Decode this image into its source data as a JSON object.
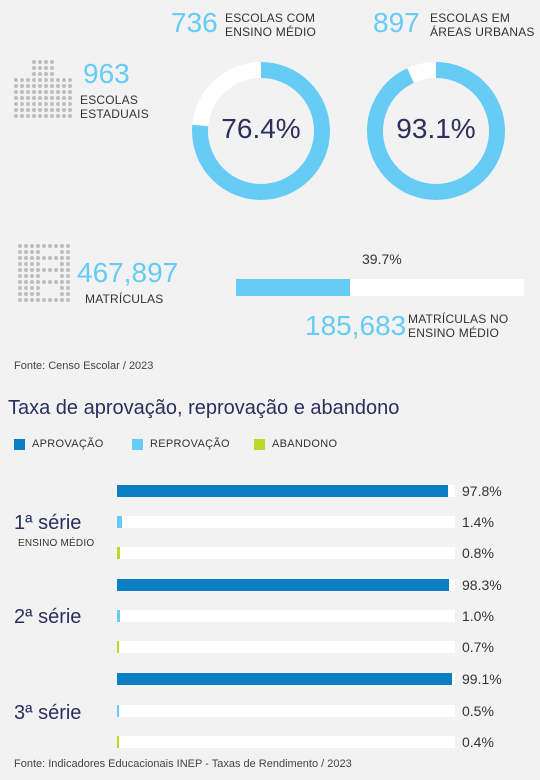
{
  "stats": {
    "escolas_estaduais": {
      "value": "963",
      "label_line1": "ESCOLAS",
      "label_line2": "ESTADUAIS",
      "icon": "school-building-icon"
    },
    "ensino_medio": {
      "value": "736",
      "label_line1": "ESCOLAS COM",
      "label_line2": "ENSINO MÉDIO",
      "percent_label": "76.4%",
      "percent": 76.4
    },
    "areas_urbanas": {
      "value": "897",
      "label_line1": "ESCOLAS EM",
      "label_line2": "ÁREAS URBANAS",
      "percent_label": "93.1%",
      "percent": 93.1
    },
    "matriculas": {
      "value": "467,897",
      "label": "MATRÍCULAS",
      "icon": "enrollment-document-icon"
    },
    "matriculas_ensino_medio": {
      "value": "185,683",
      "label_line1": "MATRÍCULAS NO",
      "label_line2": "ENSINO MÉDIO",
      "percent_label": "39.7%",
      "percent": 39.7
    }
  },
  "source_top": "Fonte: Censo Escolar / 2023",
  "source_bottom": "Fonte: Indicadores Educacionais INEP - Taxas de Rendimento / 2023",
  "colors": {
    "accent": "#66ccf5",
    "aprovacao": "#0b7fc2",
    "reprovacao": "#66ccf5",
    "abandono": "#c2d52b",
    "track": "#ffffff",
    "title": "#2b2f5e"
  },
  "chart_data": {
    "type": "bar",
    "title": "Taxa de aprovação, reprovação e abandono",
    "legend": [
      "APROVAÇÃO",
      "REPROVAÇÃO",
      "ABANDONO"
    ],
    "categories": [
      "1ª série",
      "2ª série",
      "3ª série"
    ],
    "category_sub": [
      "ENSINO MÉDIO",
      "",
      ""
    ],
    "series": [
      {
        "name": "APROVAÇÃO",
        "values": [
          97.8,
          98.3,
          99.1
        ],
        "labels": [
          "97.8%",
          "98.3%",
          "99.1%"
        ]
      },
      {
        "name": "REPROVAÇÃO",
        "values": [
          1.4,
          1.0,
          0.5
        ],
        "labels": [
          "1.4%",
          "1.0%",
          "0.5%"
        ]
      },
      {
        "name": "ABANDONO",
        "values": [
          0.8,
          0.7,
          0.4
        ],
        "labels": [
          "0.8%",
          "0.7%",
          "0.4%"
        ]
      }
    ],
    "xlim": [
      0,
      100
    ],
    "orientation": "horizontal",
    "legend_position": "top-left",
    "grid": false
  }
}
